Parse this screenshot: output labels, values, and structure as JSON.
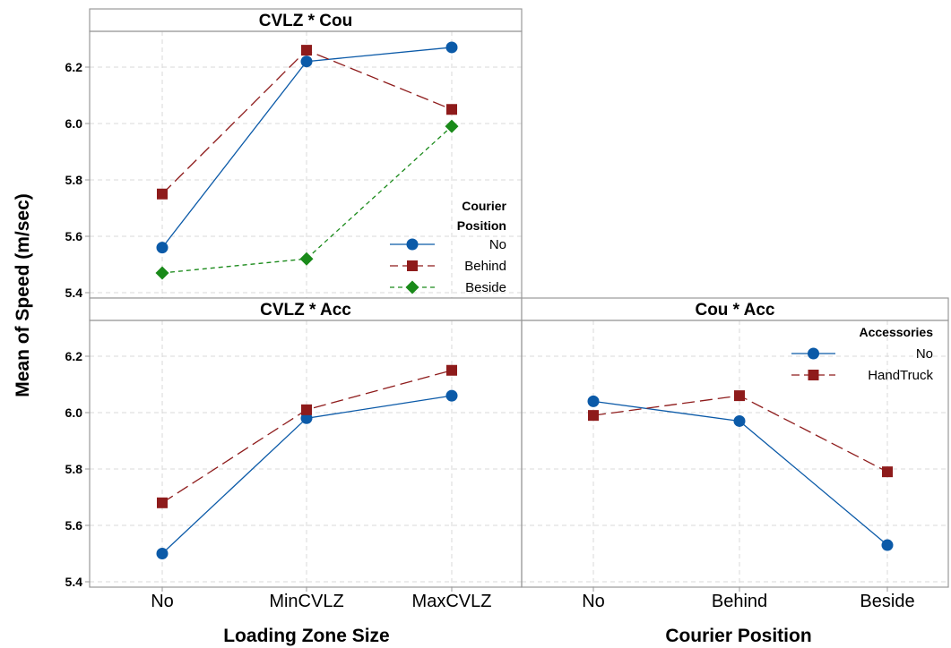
{
  "chart_data": {
    "type": "line",
    "ylabel": "Mean of Speed (m/sec)",
    "xlabel_left": "Loading Zone Size",
    "xlabel_right": "Courier Position",
    "y_ticks": [
      "5.4",
      "5.6",
      "5.8",
      "6.0",
      "6.2"
    ],
    "ylim": [
      5.4,
      6.3
    ],
    "grid": true,
    "panels": [
      {
        "title": "CVLZ * Cou",
        "categories": [
          "No",
          "MinCVLZ",
          "MaxCVLZ"
        ],
        "legend_title_line1": "Courier",
        "legend_title_line2": "Position",
        "legend_position": "bottom-right",
        "series": [
          {
            "name": "No",
            "values": [
              5.56,
              6.22,
              6.27
            ],
            "color": "#0b5aa8",
            "marker": "circle",
            "dash": "none"
          },
          {
            "name": "Behind",
            "values": [
              5.75,
              6.26,
              6.05
            ],
            "color": "#8e1b1b",
            "marker": "square",
            "dash": "long"
          },
          {
            "name": "Beside",
            "values": [
              5.47,
              5.52,
              5.99
            ],
            "color": "#1a8a1a",
            "marker": "diamond",
            "dash": "short"
          }
        ]
      },
      {
        "title": "CVLZ * Acc",
        "categories": [
          "No",
          "MinCVLZ",
          "MaxCVLZ"
        ],
        "series": [
          {
            "name": "No",
            "values": [
              5.5,
              5.98,
              6.06
            ],
            "color": "#0b5aa8",
            "marker": "circle",
            "dash": "none"
          },
          {
            "name": "HandTruck",
            "values": [
              5.68,
              6.01,
              6.15
            ],
            "color": "#8e1b1b",
            "marker": "square",
            "dash": "long"
          }
        ]
      },
      {
        "title": "Cou * Acc",
        "categories": [
          "No",
          "Behind",
          "Beside"
        ],
        "legend_title_line1": "Accessories",
        "legend_position": "top-right",
        "series": [
          {
            "name": "No",
            "values": [
              6.04,
              5.97,
              5.53
            ],
            "color": "#0b5aa8",
            "marker": "circle",
            "dash": "none"
          },
          {
            "name": "HandTruck",
            "values": [
              5.99,
              6.06,
              5.79
            ],
            "color": "#8e1b1b",
            "marker": "square",
            "dash": "long"
          }
        ]
      }
    ]
  }
}
